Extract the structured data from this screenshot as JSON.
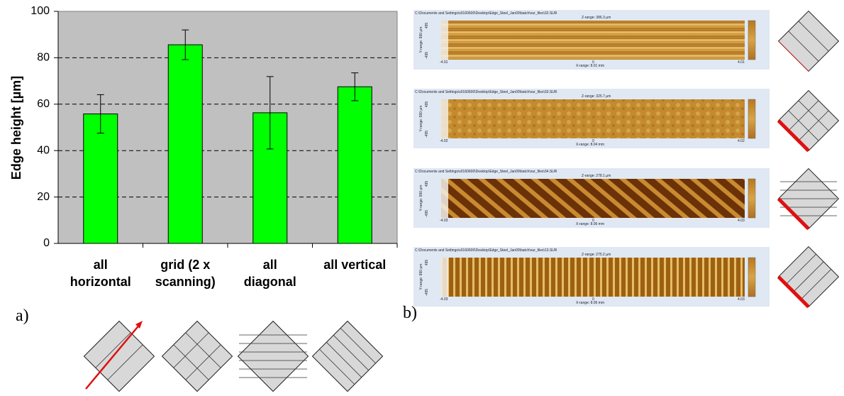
{
  "chart_data": {
    "type": "bar",
    "ylabel": "Edge height [µm]",
    "categories": [
      "all\nhorizontal",
      "grid (2 x\nscanning)",
      "all\ndiagonal",
      "all vertical"
    ],
    "values": [
      55.8,
      85.6,
      56.3,
      67.5
    ],
    "errors": [
      8.3,
      6.4,
      15.6,
      6.0
    ],
    "color": "#00ff00",
    "background": "#c0c0c0",
    "ylim": [
      0,
      100
    ],
    "yticks": [
      0,
      20,
      40,
      60,
      80,
      100
    ],
    "grid": true
  },
  "panel_labels": [
    "a)",
    "b)"
  ],
  "scans": [
    {
      "path": "C:\\Documents and Settings\\s0160600\\Desktop\\Edge_Steel_Jan09\\batch\\our_files\\32.SUR",
      "zrange": "Z-range:  386.3 µm",
      "xrange": "X-range:  8.01 mm",
      "xmin": "-4.01",
      "xzero": "0",
      "xmax": "4.01",
      "yrange": "Y-range: 990 µm",
      "ytop": "495",
      "ybottom": "-495",
      "pattern": "horizontal"
    },
    {
      "path": "C:\\Documents and Settings\\s0160600\\Desktop\\Edge_Steel_Jan09\\batch\\our_files\\33.SUR",
      "zrange": "Z-range:  325.7 µm",
      "xrange": "X-range:  8.04 mm",
      "xmin": "-4.02",
      "xzero": "0",
      "xmax": "4.02",
      "yrange": "Y-range: 990 µm",
      "ytop": "495",
      "ybottom": "-495",
      "pattern": "grid"
    },
    {
      "path": "C:\\Documents and Settings\\s0160600\\Desktop\\Edge_Steel_Jan09\\batch\\our_files\\34.SUR",
      "zrange": "Z-range:  278.1 µm",
      "xrange": "X-range:  8.06 mm",
      "xmin": "-4.03",
      "xzero": "0",
      "xmax": "4.03",
      "yrange": "Y-range: 990 µm",
      "ytop": "495",
      "ybottom": "-495",
      "pattern": "diagonal"
    },
    {
      "path": "C:\\Documents and Settings\\s0160600\\Desktop\\Edge_Steel_Jan09\\batch\\our_files\\13.SUR",
      "zrange": "Z-range:  275.2 µm",
      "xrange": "X-range:  8.06 mm",
      "xmin": "-4.03",
      "xzero": "0",
      "xmax": "4.03",
      "yrange": "Y-range: 990 µm",
      "ytop": "495",
      "ybottom": "-495",
      "pattern": "vertical"
    }
  ]
}
